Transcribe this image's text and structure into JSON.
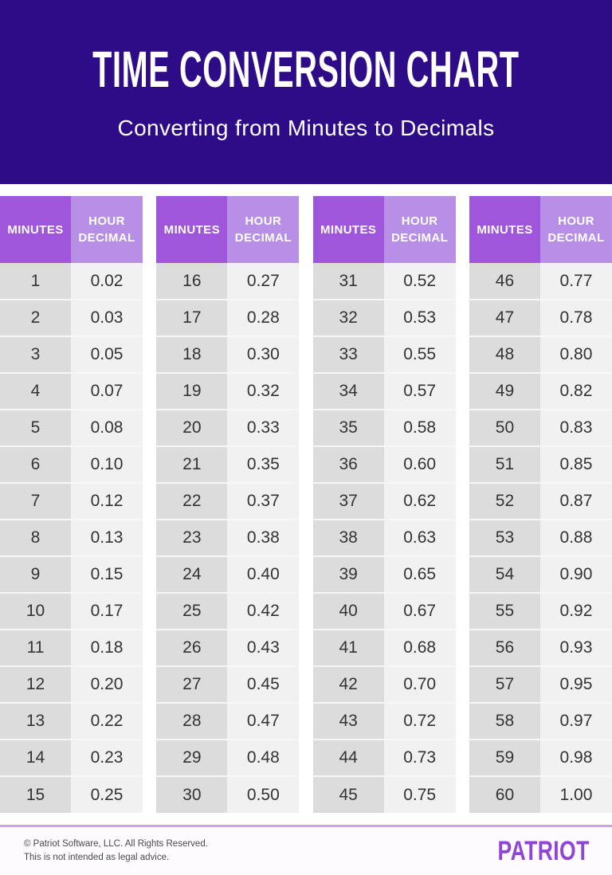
{
  "header": {
    "title": "TIME CONVERSION CHART",
    "subtitle": "Converting from Minutes to Decimals"
  },
  "chart_data": {
    "type": "table",
    "title": "TIME CONVERSION CHART",
    "subtitle": "Converting from Minutes to Decimals",
    "columns": [
      "MINUTES",
      "HOUR DECIMAL"
    ],
    "tables": [
      {
        "rows": [
          [
            "1",
            "0.02"
          ],
          [
            "2",
            "0.03"
          ],
          [
            "3",
            "0.05"
          ],
          [
            "4",
            "0.07"
          ],
          [
            "5",
            "0.08"
          ],
          [
            "6",
            "0.10"
          ],
          [
            "7",
            "0.12"
          ],
          [
            "8",
            "0.13"
          ],
          [
            "9",
            "0.15"
          ],
          [
            "10",
            "0.17"
          ],
          [
            "11",
            "0.18"
          ],
          [
            "12",
            "0.20"
          ],
          [
            "13",
            "0.22"
          ],
          [
            "14",
            "0.23"
          ],
          [
            "15",
            "0.25"
          ]
        ]
      },
      {
        "rows": [
          [
            "16",
            "0.27"
          ],
          [
            "17",
            "0.28"
          ],
          [
            "18",
            "0.30"
          ],
          [
            "19",
            "0.32"
          ],
          [
            "20",
            "0.33"
          ],
          [
            "21",
            "0.35"
          ],
          [
            "22",
            "0.37"
          ],
          [
            "23",
            "0.38"
          ],
          [
            "24",
            "0.40"
          ],
          [
            "25",
            "0.42"
          ],
          [
            "26",
            "0.43"
          ],
          [
            "27",
            "0.45"
          ],
          [
            "28",
            "0.47"
          ],
          [
            "29",
            "0.48"
          ],
          [
            "30",
            "0.50"
          ]
        ]
      },
      {
        "rows": [
          [
            "31",
            "0.52"
          ],
          [
            "32",
            "0.53"
          ],
          [
            "33",
            "0.55"
          ],
          [
            "34",
            "0.57"
          ],
          [
            "35",
            "0.58"
          ],
          [
            "36",
            "0.60"
          ],
          [
            "37",
            "0.62"
          ],
          [
            "38",
            "0.63"
          ],
          [
            "39",
            "0.65"
          ],
          [
            "40",
            "0.67"
          ],
          [
            "41",
            "0.68"
          ],
          [
            "42",
            "0.70"
          ],
          [
            "43",
            "0.72"
          ],
          [
            "44",
            "0.73"
          ],
          [
            "45",
            "0.75"
          ]
        ]
      },
      {
        "rows": [
          [
            "46",
            "0.77"
          ],
          [
            "47",
            "0.78"
          ],
          [
            "48",
            "0.80"
          ],
          [
            "49",
            "0.82"
          ],
          [
            "50",
            "0.83"
          ],
          [
            "51",
            "0.85"
          ],
          [
            "52",
            "0.87"
          ],
          [
            "53",
            "0.88"
          ],
          [
            "54",
            "0.90"
          ],
          [
            "55",
            "0.92"
          ],
          [
            "56",
            "0.93"
          ],
          [
            "57",
            "0.95"
          ],
          [
            "58",
            "0.97"
          ],
          [
            "59",
            "0.98"
          ],
          [
            "60",
            "1.00"
          ]
        ]
      }
    ]
  },
  "footer": {
    "copyright": "© Patriot Software, LLC. All Rights Reserved.",
    "disclaimer": "This is not intended as legal advice.",
    "logo": "PATRIOT"
  },
  "colors": {
    "banner_bg": "#2e0c88",
    "minutes_header_bg": "#9f56da",
    "decimal_header_bg": "#b88fe6",
    "minutes_cell_bg": "#dcdcdc",
    "decimal_cell_bg": "#f2f1f2",
    "footer_divider": "#c9a4ec",
    "logo_color": "#8f46d6"
  }
}
